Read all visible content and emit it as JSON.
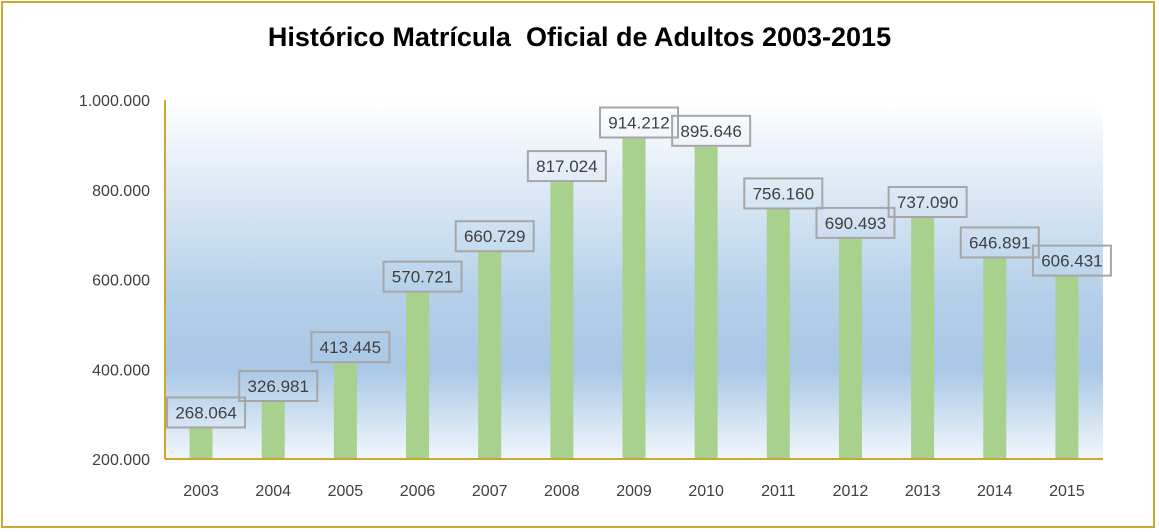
{
  "colors": {
    "bar": "#a9d18e",
    "axis": "#c9a92e",
    "plot_top": "#ffffff",
    "plot_mid": "#a9c8e6",
    "plot_bottom": "#f2f6fb",
    "label_border": "#a6a6a6",
    "frame": "#c9a92e"
  },
  "chart_data": {
    "type": "bar",
    "title": "Histórico Matrícula  Oficial de Adultos 2003-2015",
    "xlabel": "",
    "ylabel": "",
    "ylim": [
      200000,
      1000000
    ],
    "yticks": [
      200000,
      400000,
      600000,
      800000,
      1000000
    ],
    "ytick_labels": [
      "200.000",
      "400.000",
      "600.000",
      "800.000",
      "1.000.000"
    ],
    "grid": false,
    "legend": "none",
    "categories": [
      "2003",
      "2004",
      "2005",
      "2006",
      "2007",
      "2008",
      "2009",
      "2010",
      "2011",
      "2012",
      "2013",
      "2014",
      "2015"
    ],
    "values": [
      268064,
      326981,
      413445,
      570721,
      660729,
      817024,
      914212,
      895646,
      756160,
      690493,
      737090,
      646891,
      606431
    ],
    "value_labels": [
      "268.064",
      "326.981",
      "413.445",
      "570.721",
      "660.729",
      "817.024",
      "914.212",
      "895.646",
      "756.160",
      "690.493",
      "737.090",
      "646.891",
      "606.431"
    ]
  }
}
